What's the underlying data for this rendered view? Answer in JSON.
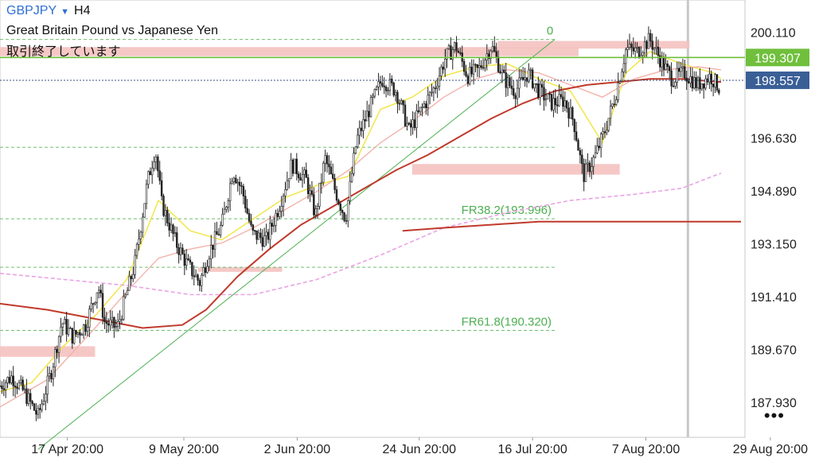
{
  "header": {
    "symbol": "GBPJPY",
    "dropdown_glyph": "▼",
    "timeframe": "H4",
    "description": "Great Britain Pound vs Japanese Yen",
    "status": "取引終了しています"
  },
  "menu": {
    "more_label": "•••"
  },
  "colors": {
    "candle": "#222222",
    "ma_fast": "#f2e64a",
    "ma_mid": "#f2b3ab",
    "ma_slow": "#c0392b",
    "ma_long": "#e9a3e4",
    "zone": "#f4c2c0",
    "fib": "#4caf50",
    "trend": "#4caf50",
    "resistance": "#6fbf3c",
    "current_price_box": "#3a5f96",
    "resistance_box": "#6fbf3c"
  },
  "chart_data": {
    "type": "candlestick",
    "title": "GBPJPY H4",
    "ylim": [
      186.8,
      201.2
    ],
    "y_ticks": [
      200.11,
      198.37,
      196.63,
      194.89,
      193.15,
      191.41,
      189.67,
      187.93
    ],
    "y_tick_labels": [
      "200.110",
      "",
      "196.630",
      "194.890",
      "193.150",
      "191.410",
      "189.670",
      "187.930"
    ],
    "x_range": [
      0,
      940
    ],
    "x_ticks": [
      {
        "x": 85,
        "label": "17 Apr 20:00"
      },
      {
        "x": 232,
        "label": "9 May 20:00"
      },
      {
        "x": 375,
        "label": "2 Jun 20:00"
      },
      {
        "x": 529,
        "label": "24 Jun 20:00"
      },
      {
        "x": 672,
        "label": "16 Jul 20:00"
      },
      {
        "x": 815,
        "label": "7 Aug 20:00"
      },
      {
        "x": 972,
        "label": "29 Aug 20:00"
      }
    ],
    "price_path": [
      [
        0,
        188.5
      ],
      [
        15,
        188.8
      ],
      [
        30,
        188.3
      ],
      [
        48,
        187.5
      ],
      [
        65,
        189.0
      ],
      [
        78,
        190.6
      ],
      [
        92,
        190.1
      ],
      [
        108,
        190.5
      ],
      [
        124,
        191.8
      ],
      [
        132,
        190.6
      ],
      [
        148,
        190.4
      ],
      [
        170,
        192.5
      ],
      [
        186,
        195.2
      ],
      [
        196,
        196.3
      ],
      [
        204,
        194.5
      ],
      [
        222,
        193.2
      ],
      [
        236,
        192.5
      ],
      [
        252,
        191.9
      ],
      [
        264,
        192.9
      ],
      [
        280,
        193.8
      ],
      [
        294,
        195.6
      ],
      [
        306,
        194.9
      ],
      [
        318,
        193.5
      ],
      [
        336,
        193.3
      ],
      [
        352,
        194.4
      ],
      [
        368,
        195.8
      ],
      [
        386,
        195.3
      ],
      [
        398,
        194.1
      ],
      [
        410,
        196.0
      ],
      [
        422,
        195.0
      ],
      [
        436,
        194.0
      ],
      [
        450,
        196.6
      ],
      [
        466,
        197.6
      ],
      [
        482,
        198.6
      ],
      [
        500,
        198.2
      ],
      [
        516,
        196.9
      ],
      [
        532,
        197.6
      ],
      [
        548,
        198.3
      ],
      [
        562,
        199.3
      ],
      [
        575,
        199.7
      ],
      [
        590,
        198.7
      ],
      [
        604,
        198.9
      ],
      [
        620,
        199.7
      ],
      [
        636,
        198.6
      ],
      [
        650,
        198.2
      ],
      [
        666,
        198.8
      ],
      [
        680,
        198.2
      ],
      [
        696,
        197.8
      ],
      [
        712,
        197.9
      ],
      [
        724,
        197.2
      ],
      [
        736,
        195.4
      ],
      [
        750,
        196.0
      ],
      [
        762,
        196.8
      ],
      [
        776,
        198.0
      ],
      [
        790,
        199.6
      ],
      [
        804,
        199.5
      ],
      [
        820,
        199.9
      ],
      [
        834,
        199.2
      ],
      [
        848,
        198.6
      ],
      [
        864,
        198.8
      ],
      [
        880,
        198.4
      ],
      [
        896,
        198.7
      ],
      [
        908,
        198.3
      ]
    ],
    "moving_averages": [
      {
        "style": "fast",
        "points": [
          [
            0,
            188.3
          ],
          [
            40,
            188.6
          ],
          [
            80,
            189.8
          ],
          [
            120,
            190.8
          ],
          [
            160,
            192.0
          ],
          [
            200,
            194.6
          ],
          [
            240,
            193.6
          ],
          [
            280,
            193.3
          ],
          [
            320,
            194.0
          ],
          [
            360,
            194.7
          ],
          [
            400,
            195.1
          ],
          [
            440,
            195.4
          ],
          [
            480,
            197.6
          ],
          [
            520,
            198.0
          ],
          [
            560,
            198.7
          ],
          [
            600,
            199.0
          ],
          [
            640,
            199.1
          ],
          [
            680,
            198.6
          ],
          [
            720,
            198.2
          ],
          [
            760,
            196.5
          ],
          [
            790,
            198.8
          ],
          [
            820,
            199.5
          ],
          [
            860,
            199.1
          ],
          [
            900,
            198.8
          ],
          [
            910,
            198.6
          ]
        ]
      },
      {
        "style": "mid",
        "points": [
          [
            0,
            187.8
          ],
          [
            60,
            188.7
          ],
          [
            120,
            190.4
          ],
          [
            160,
            191.6
          ],
          [
            200,
            192.7
          ],
          [
            240,
            193.0
          ],
          [
            280,
            193.2
          ],
          [
            320,
            193.7
          ],
          [
            360,
            194.3
          ],
          [
            400,
            194.9
          ],
          [
            440,
            195.6
          ],
          [
            480,
            196.5
          ],
          [
            520,
            197.2
          ],
          [
            560,
            198.0
          ],
          [
            600,
            198.6
          ],
          [
            640,
            198.9
          ],
          [
            680,
            198.8
          ],
          [
            720,
            198.4
          ],
          [
            760,
            198.0
          ],
          [
            800,
            198.6
          ],
          [
            840,
            198.9
          ],
          [
            880,
            199.0
          ],
          [
            910,
            198.9
          ]
        ]
      },
      {
        "style": "slow",
        "points": [
          [
            0,
            191.2
          ],
          [
            60,
            191.0
          ],
          [
            120,
            190.7
          ],
          [
            180,
            190.4
          ],
          [
            230,
            190.5
          ],
          [
            260,
            191.0
          ],
          [
            300,
            192.1
          ],
          [
            340,
            193.0
          ],
          [
            380,
            193.8
          ],
          [
            420,
            194.4
          ],
          [
            460,
            195.0
          ],
          [
            500,
            195.6
          ],
          [
            540,
            196.1
          ],
          [
            580,
            196.7
          ],
          [
            620,
            197.3
          ],
          [
            660,
            197.8
          ],
          [
            700,
            198.2
          ],
          [
            740,
            198.4
          ],
          [
            780,
            198.5
          ],
          [
            820,
            198.6
          ],
          [
            860,
            198.6
          ],
          [
            910,
            198.5
          ]
        ]
      },
      {
        "style": "long",
        "points": [
          [
            0,
            192.2
          ],
          [
            80,
            192.0
          ],
          [
            160,
            191.8
          ],
          [
            240,
            191.5
          ],
          [
            320,
            191.5
          ],
          [
            400,
            192.0
          ],
          [
            480,
            192.8
          ],
          [
            560,
            193.7
          ],
          [
            640,
            194.2
          ],
          [
            720,
            194.6
          ],
          [
            800,
            194.8
          ],
          [
            860,
            195.0
          ],
          [
            910,
            195.5
          ]
        ]
      },
      {
        "style": "slow_flat",
        "points": [
          [
            508,
            193.6
          ],
          [
            560,
            193.7
          ],
          [
            620,
            193.8
          ],
          [
            680,
            193.9
          ],
          [
            740,
            193.9
          ],
          [
            800,
            193.9
          ],
          [
            860,
            193.9
          ],
          [
            935,
            193.9
          ]
        ]
      }
    ],
    "zones": [
      {
        "x0": 0,
        "x1": 120,
        "y0": 189.45,
        "y1": 189.8
      },
      {
        "x0": 250,
        "x1": 356,
        "y0": 192.25,
        "y1": 192.4
      },
      {
        "x0": 520,
        "x1": 782,
        "y0": 195.45,
        "y1": 195.8
      },
      {
        "x0": 0,
        "x1": 730,
        "y0": 199.35,
        "y1": 199.65
      },
      {
        "x0": 628,
        "x1": 870,
        "y0": 199.6,
        "y1": 199.85
      }
    ],
    "fibonacci": {
      "x0": 0,
      "x1": 700,
      "levels": [
        {
          "price": 199.9,
          "label": "0"
        },
        {
          "price": 196.35,
          "label": ""
        },
        {
          "price": 193.996,
          "label": "FR38.2(193.996)"
        },
        {
          "price": 192.4,
          "label": ""
        },
        {
          "price": 190.32,
          "label": "FR61.8(190.320)"
        }
      ]
    },
    "trendline": {
      "x0": 48,
      "y0": 186.4,
      "x1": 700,
      "y1": 199.9
    },
    "resistance_line": {
      "price": 199.307,
      "label": "199.307"
    },
    "current_price": {
      "price": 198.557,
      "label": "198.557"
    },
    "cursor_x": 868
  }
}
